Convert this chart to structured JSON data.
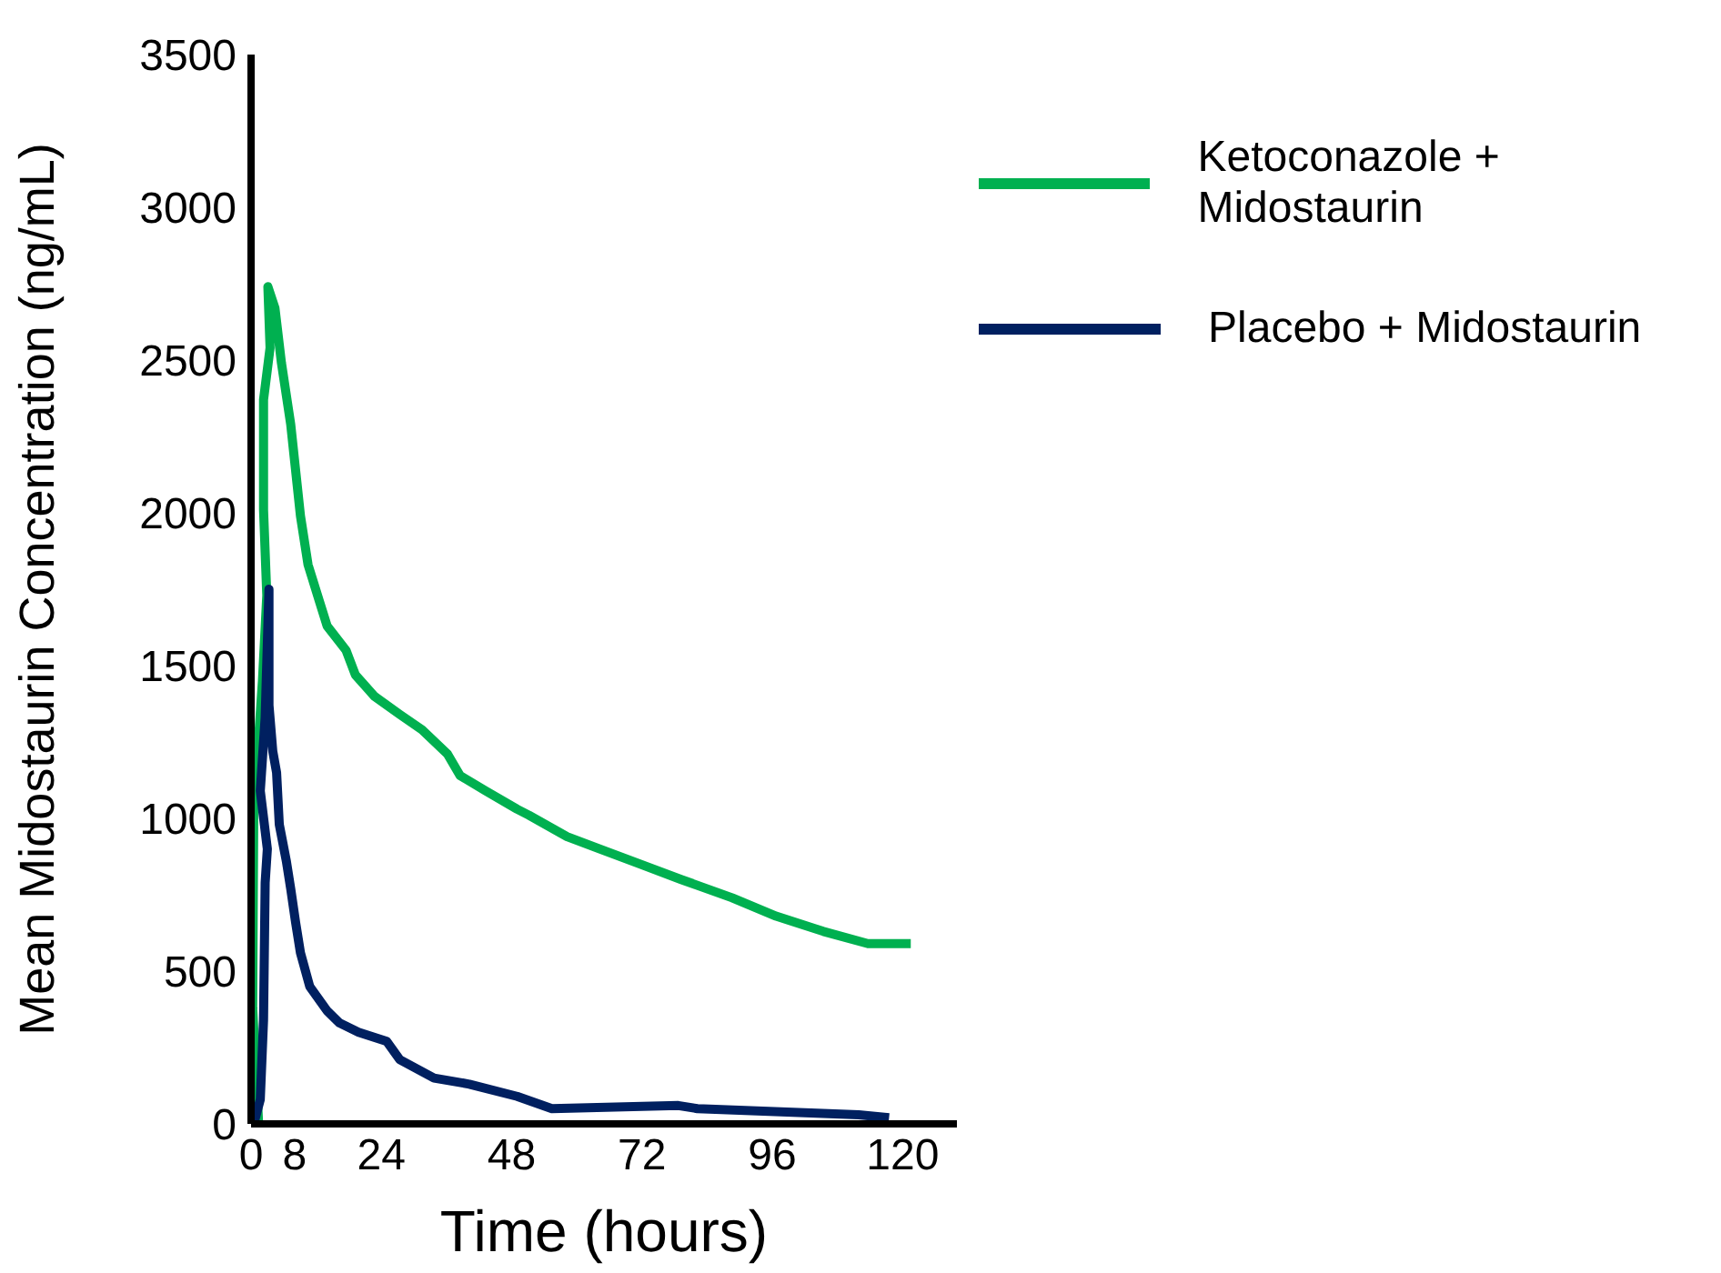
{
  "chart_data": {
    "type": "line",
    "xlabel": "Time (hours)",
    "ylabel": "Mean Midostaurin Concentration (ng/mL)",
    "xlim": [
      0,
      130
    ],
    "xticks": [
      0,
      8,
      24,
      48,
      72,
      96,
      120
    ],
    "ylim": [
      0,
      3500
    ],
    "yticks": [
      0,
      500,
      1000,
      1500,
      2000,
      2500,
      3000,
      3500
    ],
    "grid": false,
    "legend": "top right",
    "marker": "none",
    "line_style": "solid",
    "series": [
      {
        "name": "Ketoconazole + Midostaurin",
        "color": "#00b050",
        "x": [
          1.4,
          0.3,
          0.5,
          2.1,
          2.9,
          2.3,
          2.3,
          3.5,
          3.1,
          4.4,
          5.6,
          7.3,
          9.1,
          10.5,
          12.6,
          14,
          17.5,
          19.2,
          22.7,
          27.4,
          31.5,
          36.2,
          38.5,
          43.2,
          49,
          51.2,
          58.2,
          64.2,
          71.7,
          79.2,
          88.6,
          96.7,
          105.4,
          113.6,
          121.5
        ],
        "values": [
          0,
          380,
          1030,
          1450,
          1730,
          2010,
          2370,
          2540,
          2740,
          2670,
          2490,
          2290,
          1990,
          1830,
          1710,
          1630,
          1550,
          1470,
          1400,
          1340,
          1290,
          1210,
          1140,
          1090,
          1030,
          1010,
          940,
          900,
          850,
          800,
          740,
          680,
          630,
          590,
          590
        ]
      },
      {
        "name": "Placebo + Midostaurin",
        "color": "#002060",
        "x": [
          0.5,
          1.7,
          2.3,
          2.6,
          3.0,
          1.7,
          2.6,
          3.3,
          3.3,
          4.0,
          4.7,
          5.2,
          6.5,
          7.3,
          8.2,
          9.1,
          10.8,
          14.0,
          16.3,
          19.8,
          25.0,
          27.4,
          33.7,
          40.2,
          49.0,
          55.4,
          78.7,
          82.2,
          111.9,
          117.5
        ],
        "values": [
          0,
          80,
          340,
          790,
          900,
          1090,
          1330,
          1750,
          1370,
          1220,
          1150,
          980,
          860,
          770,
          660,
          560,
          450,
          370,
          330,
          300,
          270,
          210,
          150,
          130,
          90,
          50,
          60,
          50,
          30,
          20
        ]
      }
    ]
  }
}
